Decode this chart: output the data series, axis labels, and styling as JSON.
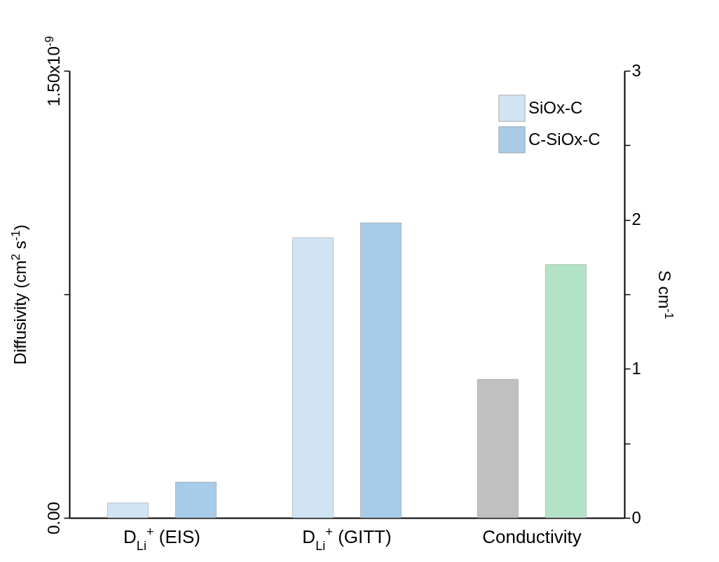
{
  "chart_data": {
    "type": "bar",
    "categories": [
      "D$_{Li}$$^{+}$ (EIS)",
      "D$_{Li}$$^{+}$  (GITT)",
      "Conductivity"
    ],
    "series": [
      {
        "name": "SiOx-C",
        "color": "#d1e4f4",
        "values": [
          5e-11,
          9.4e-10,
          null
        ]
      },
      {
        "name": "C-SiOx-C",
        "color": "#a8cbe8",
        "values": [
          1.2e-10,
          9.9e-10,
          null
        ]
      },
      {
        "color": "#c0c0c0",
        "axis": "y2",
        "values": [
          null,
          null,
          0.93
        ]
      },
      {
        "color": "#b3e3c7",
        "axis": "y2",
        "values": [
          null,
          null,
          1.7
        ]
      }
    ],
    "ylabel": "Diffusivity (cm$^{2}$ s$^{-1}$)",
    "y2label": "S cm$^{-1}$",
    "ylim": [
      0,
      1.5e-09
    ],
    "yticks": [
      {
        "value": 0,
        "label": "0.00"
      },
      {
        "value": 7.5e-10,
        "label": null
      },
      {
        "value": 1.5e-09,
        "label": "1.50x10$^{-9}$"
      }
    ],
    "y2lim": [
      0,
      3
    ],
    "y2ticks": [
      0,
      {
        "value": 0.5,
        "label": null
      },
      1,
      {
        "value": 1.5,
        "label": null
      },
      2,
      {
        "value": 2.5,
        "label": null
      },
      3
    ],
    "legend": "top right"
  }
}
